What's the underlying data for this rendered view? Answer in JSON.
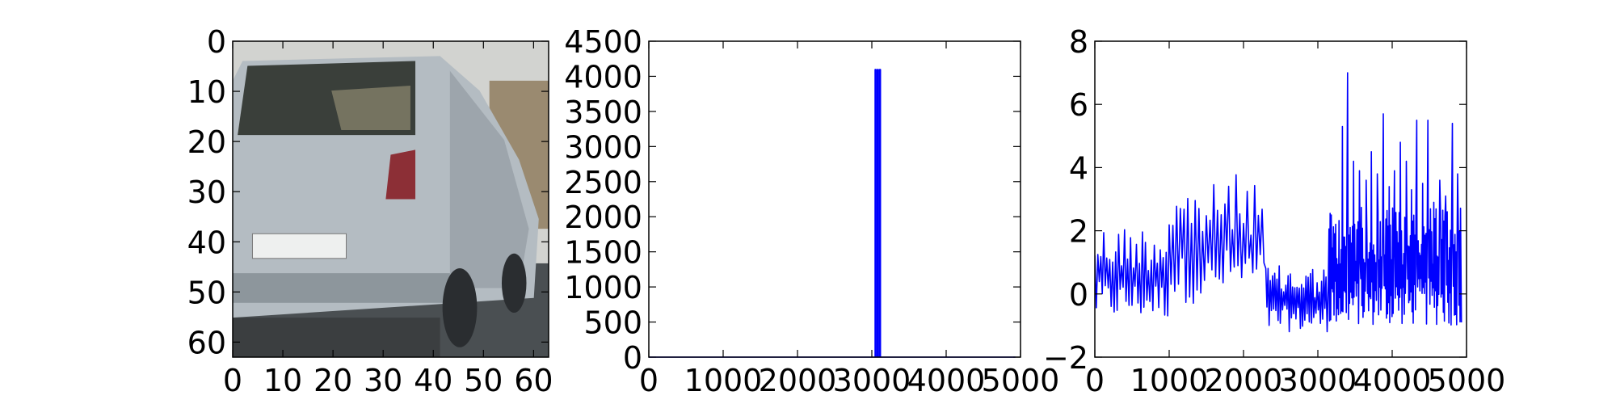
{
  "chart_data": [
    {
      "type": "image",
      "image_description": "car",
      "colors": {
        "sky": "#d2d3d0",
        "car_body": "#b4bcc2",
        "car_shadow": "#8d969c",
        "rear_window": "#3a3f3a",
        "tail_light": "#8c2f36",
        "plate": "#eef0ef",
        "road": "#4a4f52",
        "tires": "#2a2d30",
        "background_right": "#9a8a70"
      },
      "x_ticks": [
        0,
        10,
        20,
        30,
        40,
        50,
        60
      ],
      "y_ticks": [
        0,
        10,
        20,
        30,
        40,
        50,
        60
      ],
      "xlim": [
        0,
        63
      ],
      "ylim": [
        63,
        0
      ]
    },
    {
      "type": "line",
      "series_color": "#0000ff",
      "xlim": [
        0,
        5000
      ],
      "ylim": [
        0,
        4500
      ],
      "x_ticks": [
        0,
        1000,
        2000,
        3000,
        4000,
        5000
      ],
      "y_ticks": [
        0,
        500,
        1000,
        1500,
        2000,
        2500,
        3000,
        3500,
        4000,
        4500
      ],
      "baseline": 0,
      "spikes": [
        {
          "x": 3050,
          "y": 4096
        },
        {
          "x": 3080,
          "y": 4096
        },
        {
          "x": 3110,
          "y": 4096
        }
      ],
      "x_max": 4932
    },
    {
      "type": "line",
      "series_color": "#0000ff",
      "xlim": [
        0,
        5000
      ],
      "ylim": [
        -2,
        8
      ],
      "x_ticks": [
        0,
        1000,
        2000,
        3000,
        4000,
        5000
      ],
      "y_ticks": [
        -2,
        0,
        2,
        4,
        6,
        8
      ],
      "x_max": 4932,
      "segments": [
        {
          "x_start": 0,
          "x_end": 1000,
          "low": -0.8,
          "high": 2.2,
          "period": 40
        },
        {
          "x_start": 1000,
          "x_end": 1700,
          "low": -0.3,
          "high": 3.5,
          "period": 50
        },
        {
          "x_start": 1700,
          "x_end": 2300,
          "low": -0.1,
          "high": 3.8,
          "period": 50
        },
        {
          "x_start": 2300,
          "x_end": 3150,
          "low": -1.2,
          "high": 0.9,
          "period": 30
        },
        {
          "x_start": 3150,
          "x_end": 4932,
          "low": -1.0,
          "high": 2.8,
          "period": 15
        }
      ],
      "peaks": [
        {
          "x": 3180,
          "y": 2.5
        },
        {
          "x": 3330,
          "y": 5.3
        },
        {
          "x": 3400,
          "y": 7.0
        },
        {
          "x": 3480,
          "y": 4.2
        },
        {
          "x": 3560,
          "y": 3.9
        },
        {
          "x": 3650,
          "y": 3.6
        },
        {
          "x": 3720,
          "y": 4.5
        },
        {
          "x": 3800,
          "y": 3.8
        },
        {
          "x": 3880,
          "y": 5.7
        },
        {
          "x": 3960,
          "y": 3.4
        },
        {
          "x": 4030,
          "y": 3.9
        },
        {
          "x": 4110,
          "y": 4.8
        },
        {
          "x": 4190,
          "y": 4.2
        },
        {
          "x": 4260,
          "y": 3.3
        },
        {
          "x": 4330,
          "y": 5.5
        },
        {
          "x": 4410,
          "y": 3.5
        },
        {
          "x": 4480,
          "y": 5.5
        },
        {
          "x": 4560,
          "y": 2.9
        },
        {
          "x": 4640,
          "y": 3.6
        },
        {
          "x": 4720,
          "y": 3.1
        },
        {
          "x": 4810,
          "y": 5.4
        },
        {
          "x": 4880,
          "y": 3.8
        }
      ]
    }
  ]
}
